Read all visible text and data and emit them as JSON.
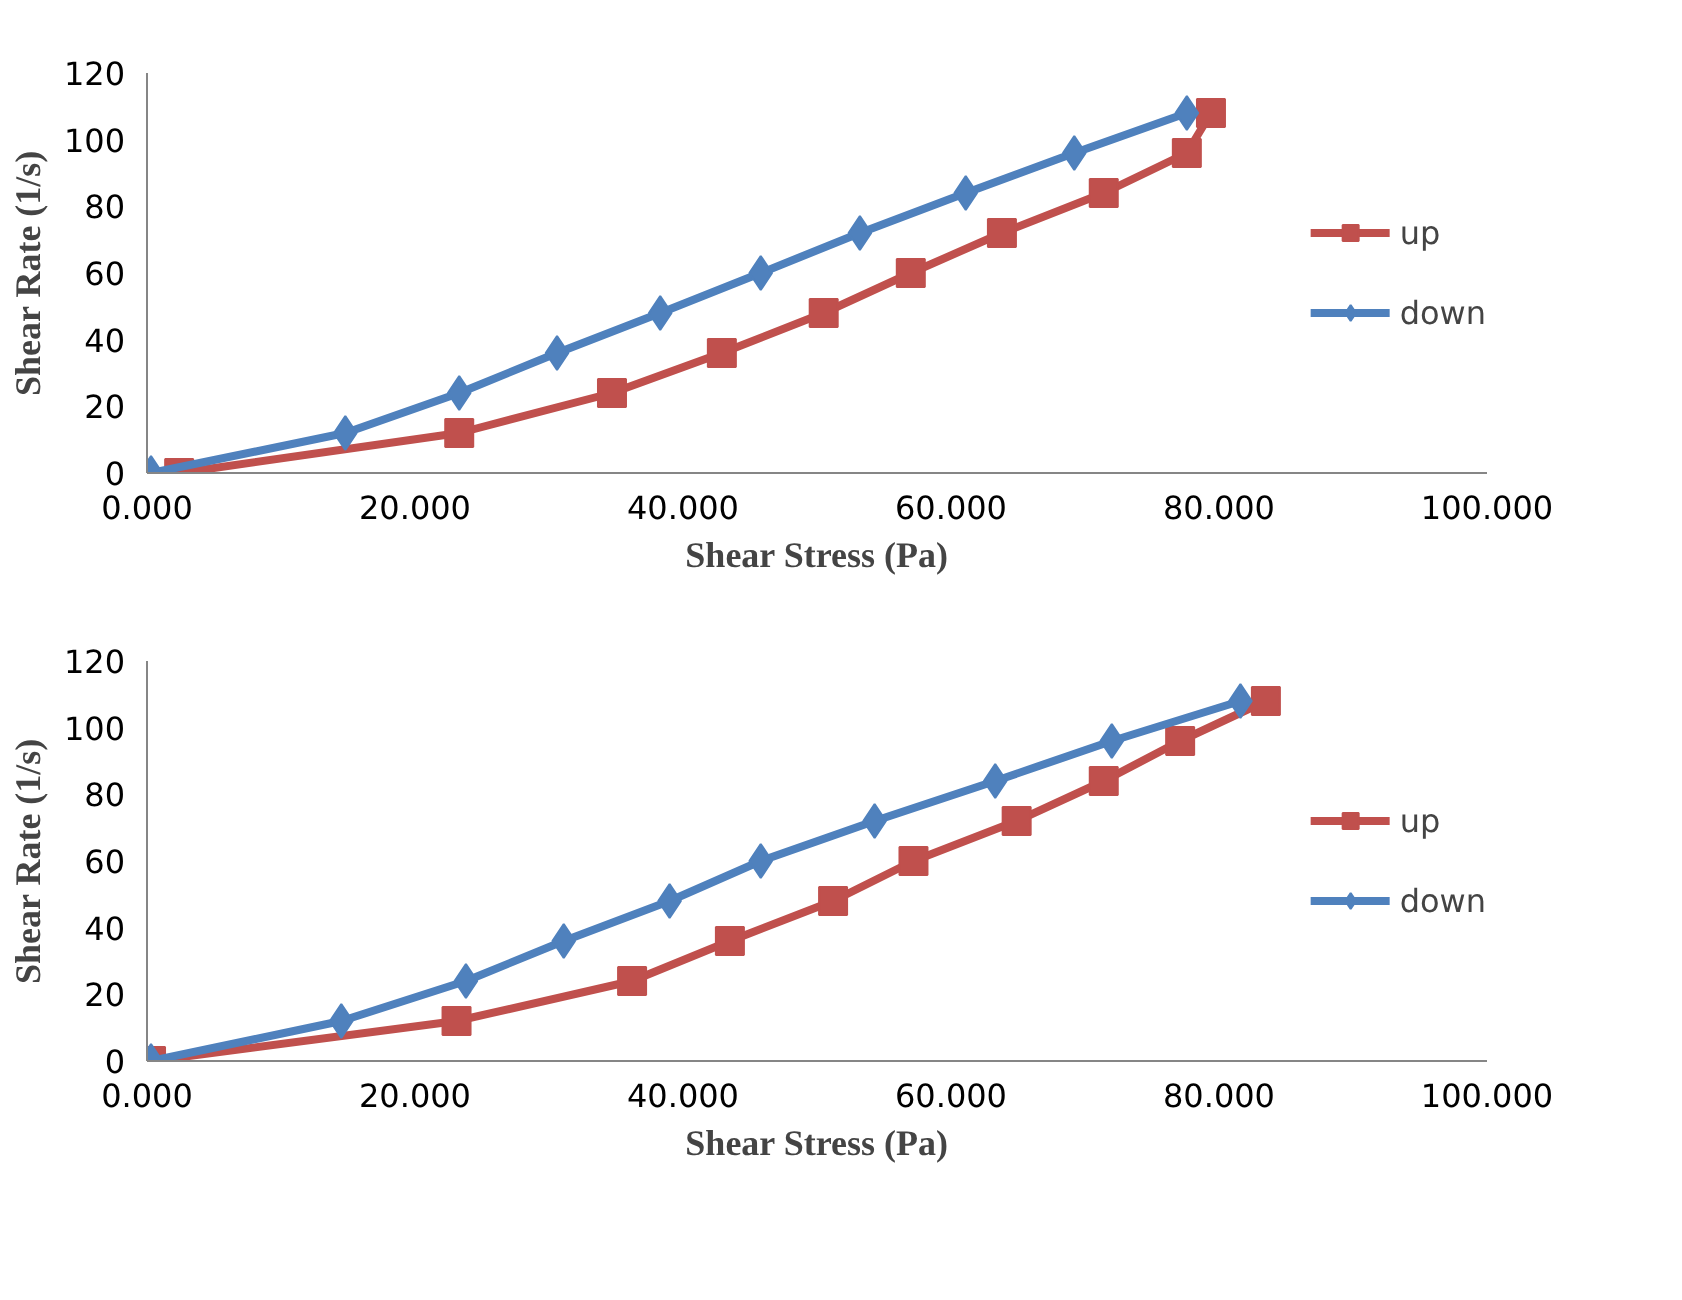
{
  "chart_data": [
    {
      "type": "line",
      "xlabel": "Shear Stress (Pa)",
      "ylabel": "Shear Rate (1/s)",
      "xlim": [
        0,
        100
      ],
      "ylim": [
        0,
        120
      ],
      "xticks": [
        {
          "value": 0,
          "label": "0.000"
        },
        {
          "value": 20,
          "label": "20.000"
        },
        {
          "value": 40,
          "label": "40.000"
        },
        {
          "value": 60,
          "label": "60.000"
        },
        {
          "value": 80,
          "label": "80.000"
        },
        {
          "value": 100,
          "label": "100.000"
        }
      ],
      "yticks": [
        0,
        20,
        40,
        60,
        80,
        100,
        120
      ],
      "grid": false,
      "legend": "right",
      "series": [
        {
          "name": "up",
          "color": "#c0504d",
          "marker": "square",
          "x": [
            2.4,
            23.3,
            34.7,
            42.9,
            50.5,
            57.0,
            63.8,
            71.4,
            77.6,
            79.4
          ],
          "values": [
            0,
            12,
            24,
            36,
            48,
            60,
            72,
            84,
            96,
            108
          ]
        },
        {
          "name": "down",
          "color": "#4f81bd",
          "marker": "diamond",
          "x": [
            0.3,
            14.8,
            23.3,
            30.6,
            38.3,
            45.8,
            53.2,
            61.1,
            69.2,
            77.6
          ],
          "values": [
            0,
            12,
            24,
            36,
            48,
            60,
            72,
            84,
            96,
            108
          ]
        }
      ]
    },
    {
      "type": "line",
      "xlabel": "Shear Stress (Pa)",
      "ylabel": "Shear Rate (1/s)",
      "xlim": [
        0,
        100
      ],
      "ylim": [
        0,
        120
      ],
      "xticks": [
        {
          "value": 0,
          "label": "0.000"
        },
        {
          "value": 20,
          "label": "20.000"
        },
        {
          "value": 40,
          "label": "40.000"
        },
        {
          "value": 60,
          "label": "60.000"
        },
        {
          "value": 80,
          "label": "80.000"
        },
        {
          "value": 100,
          "label": "100.000"
        }
      ],
      "yticks": [
        0,
        20,
        40,
        60,
        80,
        100,
        120
      ],
      "grid": false,
      "legend": "right",
      "series": [
        {
          "name": "up",
          "color": "#c0504d",
          "marker": "square",
          "x": [
            0.3,
            23.1,
            36.2,
            43.5,
            51.2,
            57.2,
            64.9,
            71.4,
            77.1,
            83.5
          ],
          "values": [
            0,
            12,
            24,
            36,
            48,
            60,
            72,
            84,
            96,
            108
          ]
        },
        {
          "name": "down",
          "color": "#4f81bd",
          "marker": "diamond",
          "x": [
            0.3,
            14.5,
            23.8,
            31.1,
            39.0,
            45.8,
            54.3,
            63.3,
            72.0,
            81.6
          ],
          "values": [
            0,
            12,
            24,
            36,
            48,
            60,
            72,
            84,
            96,
            108
          ]
        }
      ]
    }
  ]
}
